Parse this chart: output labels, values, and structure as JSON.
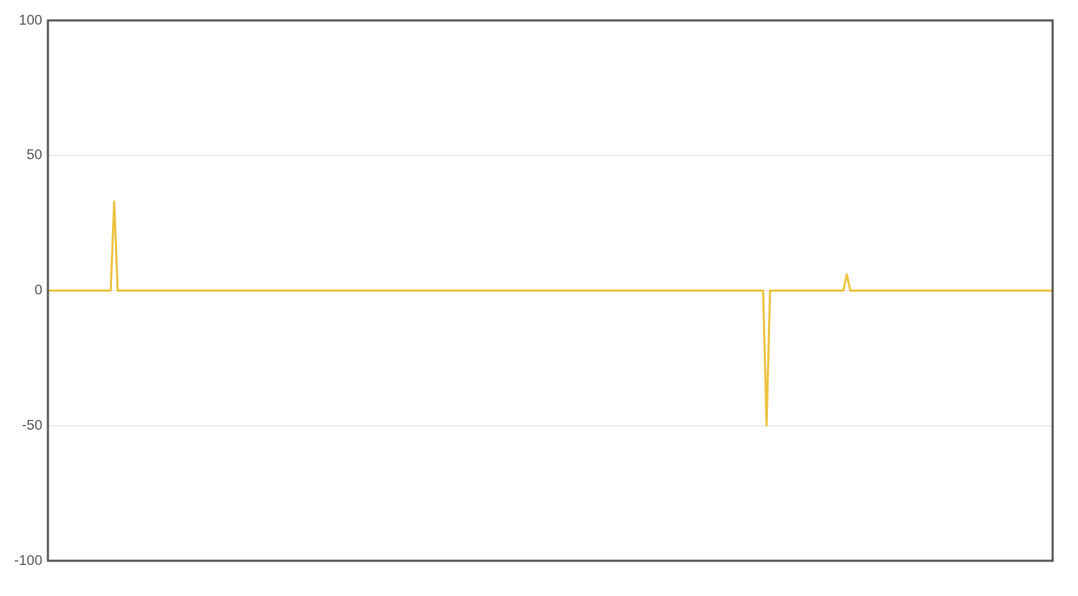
{
  "chart_data": {
    "type": "line",
    "categories": [
      null,
      null,
      null,
      null,
      null,
      null,
      null,
      null,
      null,
      null,
      null,
      null,
      null,
      null,
      null,
      null,
      null,
      null,
      null,
      null,
      null,
      null,
      null,
      null,
      null,
      null,
      null,
      null,
      null,
      null,
      null,
      null,
      null,
      null,
      null,
      null,
      null,
      null,
      null,
      null,
      null,
      null,
      null,
      null,
      null,
      null,
      null,
      null,
      null,
      null,
      null,
      null,
      null,
      null,
      null,
      null,
      null,
      null,
      null,
      null,
      null,
      null,
      null,
      null,
      null,
      null,
      null,
      null,
      null,
      null,
      null,
      null,
      null,
      null,
      null,
      null,
      null,
      null,
      null,
      null,
      null,
      null,
      null,
      null,
      null,
      null,
      null,
      null,
      null,
      null,
      null,
      null,
      null,
      null,
      null,
      null,
      null,
      null,
      null,
      null,
      null,
      null,
      null,
      null,
      null,
      null,
      null,
      null,
      null,
      null,
      null,
      null,
      null,
      null,
      null,
      null,
      null,
      null,
      null,
      null,
      null,
      null,
      null,
      null,
      null,
      null,
      null,
      null,
      null,
      null,
      null,
      null,
      null,
      null,
      null,
      null,
      null,
      null,
      null,
      null,
      null,
      null,
      null,
      null,
      null,
      null,
      null,
      null,
      null,
      null,
      null,
      null,
      null,
      null,
      null,
      null,
      null,
      null,
      null,
      null,
      null,
      null,
      null,
      null,
      null,
      null,
      null,
      null,
      null,
      null,
      null,
      null,
      null,
      null,
      null,
      null,
      null,
      null,
      null,
      null,
      null,
      null,
      null,
      null,
      null,
      null,
      null,
      null,
      null,
      null,
      null,
      null,
      null,
      null,
      null,
      null,
      null,
      null,
      null,
      null,
      null,
      null,
      null,
      null,
      null,
      null,
      null,
      null,
      null,
      null,
      null,
      null,
      null,
      null,
      null,
      null,
      null,
      null,
      null,
      null,
      null,
      null,
      null,
      null,
      null,
      null,
      null,
      null,
      null,
      null,
      null,
      null,
      null,
      null,
      null,
      null,
      null,
      null,
      null,
      null,
      null,
      null,
      null,
      null,
      null,
      null,
      null,
      null,
      null,
      null,
      null,
      null,
      null,
      null,
      null,
      null,
      null,
      null,
      null,
      null,
      null,
      null,
      null,
      null,
      null,
      null,
      null,
      null,
      null,
      null,
      null,
      null,
      null,
      null,
      null,
      null,
      null,
      null,
      null,
      null,
      null,
      null,
      null,
      null,
      null,
      null,
      null,
      null,
      null
    ],
    "values": [
      0,
      0,
      0,
      0,
      0,
      0,
      0,
      0,
      0,
      0,
      0,
      0,
      0,
      0,
      0,
      0,
      0,
      0,
      0,
      33,
      0,
      0,
      0,
      0,
      0,
      0,
      0,
      0,
      0,
      0,
      0,
      0,
      0,
      0,
      0,
      0,
      0,
      0,
      0,
      0,
      0,
      0,
      0,
      0,
      0,
      0,
      0,
      0,
      0,
      0,
      0,
      0,
      0,
      0,
      0,
      0,
      0,
      0,
      0,
      0,
      0,
      0,
      0,
      0,
      0,
      0,
      0,
      0,
      0,
      0,
      0,
      0,
      0,
      0,
      0,
      0,
      0,
      0,
      0,
      0,
      0,
      0,
      0,
      0,
      0,
      0,
      0,
      0,
      0,
      0,
      0,
      0,
      0,
      0,
      0,
      0,
      0,
      0,
      0,
      0,
      0,
      0,
      0,
      0,
      0,
      0,
      0,
      0,
      0,
      0,
      0,
      0,
      0,
      0,
      0,
      0,
      0,
      0,
      0,
      0,
      0,
      0,
      0,
      0,
      0,
      0,
      0,
      0,
      0,
      0,
      0,
      0,
      0,
      0,
      0,
      0,
      0,
      0,
      0,
      0,
      0,
      0,
      0,
      0,
      0,
      0,
      0,
      0,
      0,
      0,
      0,
      0,
      0,
      0,
      0,
      0,
      0,
      0,
      0,
      0,
      0,
      0,
      0,
      0,
      0,
      0,
      0,
      0,
      0,
      0,
      0,
      0,
      0,
      0,
      0,
      0,
      0,
      0,
      0,
      0,
      0,
      0,
      0,
      0,
      0,
      0,
      0,
      0,
      0,
      0,
      0,
      0,
      0,
      0,
      0,
      0,
      0,
      0,
      0,
      0,
      0,
      0,
      0,
      0,
      0,
      0,
      -50,
      0,
      0,
      0,
      0,
      0,
      0,
      0,
      0,
      0,
      0,
      0,
      0,
      0,
      0,
      0,
      0,
      0,
      0,
      0,
      0,
      0,
      0,
      6,
      0,
      0,
      0,
      0,
      0,
      0,
      0,
      0,
      0,
      0,
      0,
      0,
      0,
      0,
      0,
      0,
      0,
      0,
      0,
      0,
      0,
      0,
      0,
      0,
      0,
      0,
      0,
      0,
      0,
      0,
      0,
      0,
      0,
      0,
      0,
      0,
      0,
      0,
      0,
      0,
      0,
      0,
      0,
      0,
      0,
      0,
      0,
      0,
      0,
      0,
      0,
      0,
      0,
      0,
      0,
      0,
      0,
      0,
      0
    ],
    "color": "#ecc13d",
    "ylim": [
      -100,
      100
    ],
    "yticks": [
      -100,
      -50,
      0,
      50,
      100
    ],
    "grid": "y",
    "tick_labels": "y",
    "marker": "none",
    "line_style": "solid"
  }
}
